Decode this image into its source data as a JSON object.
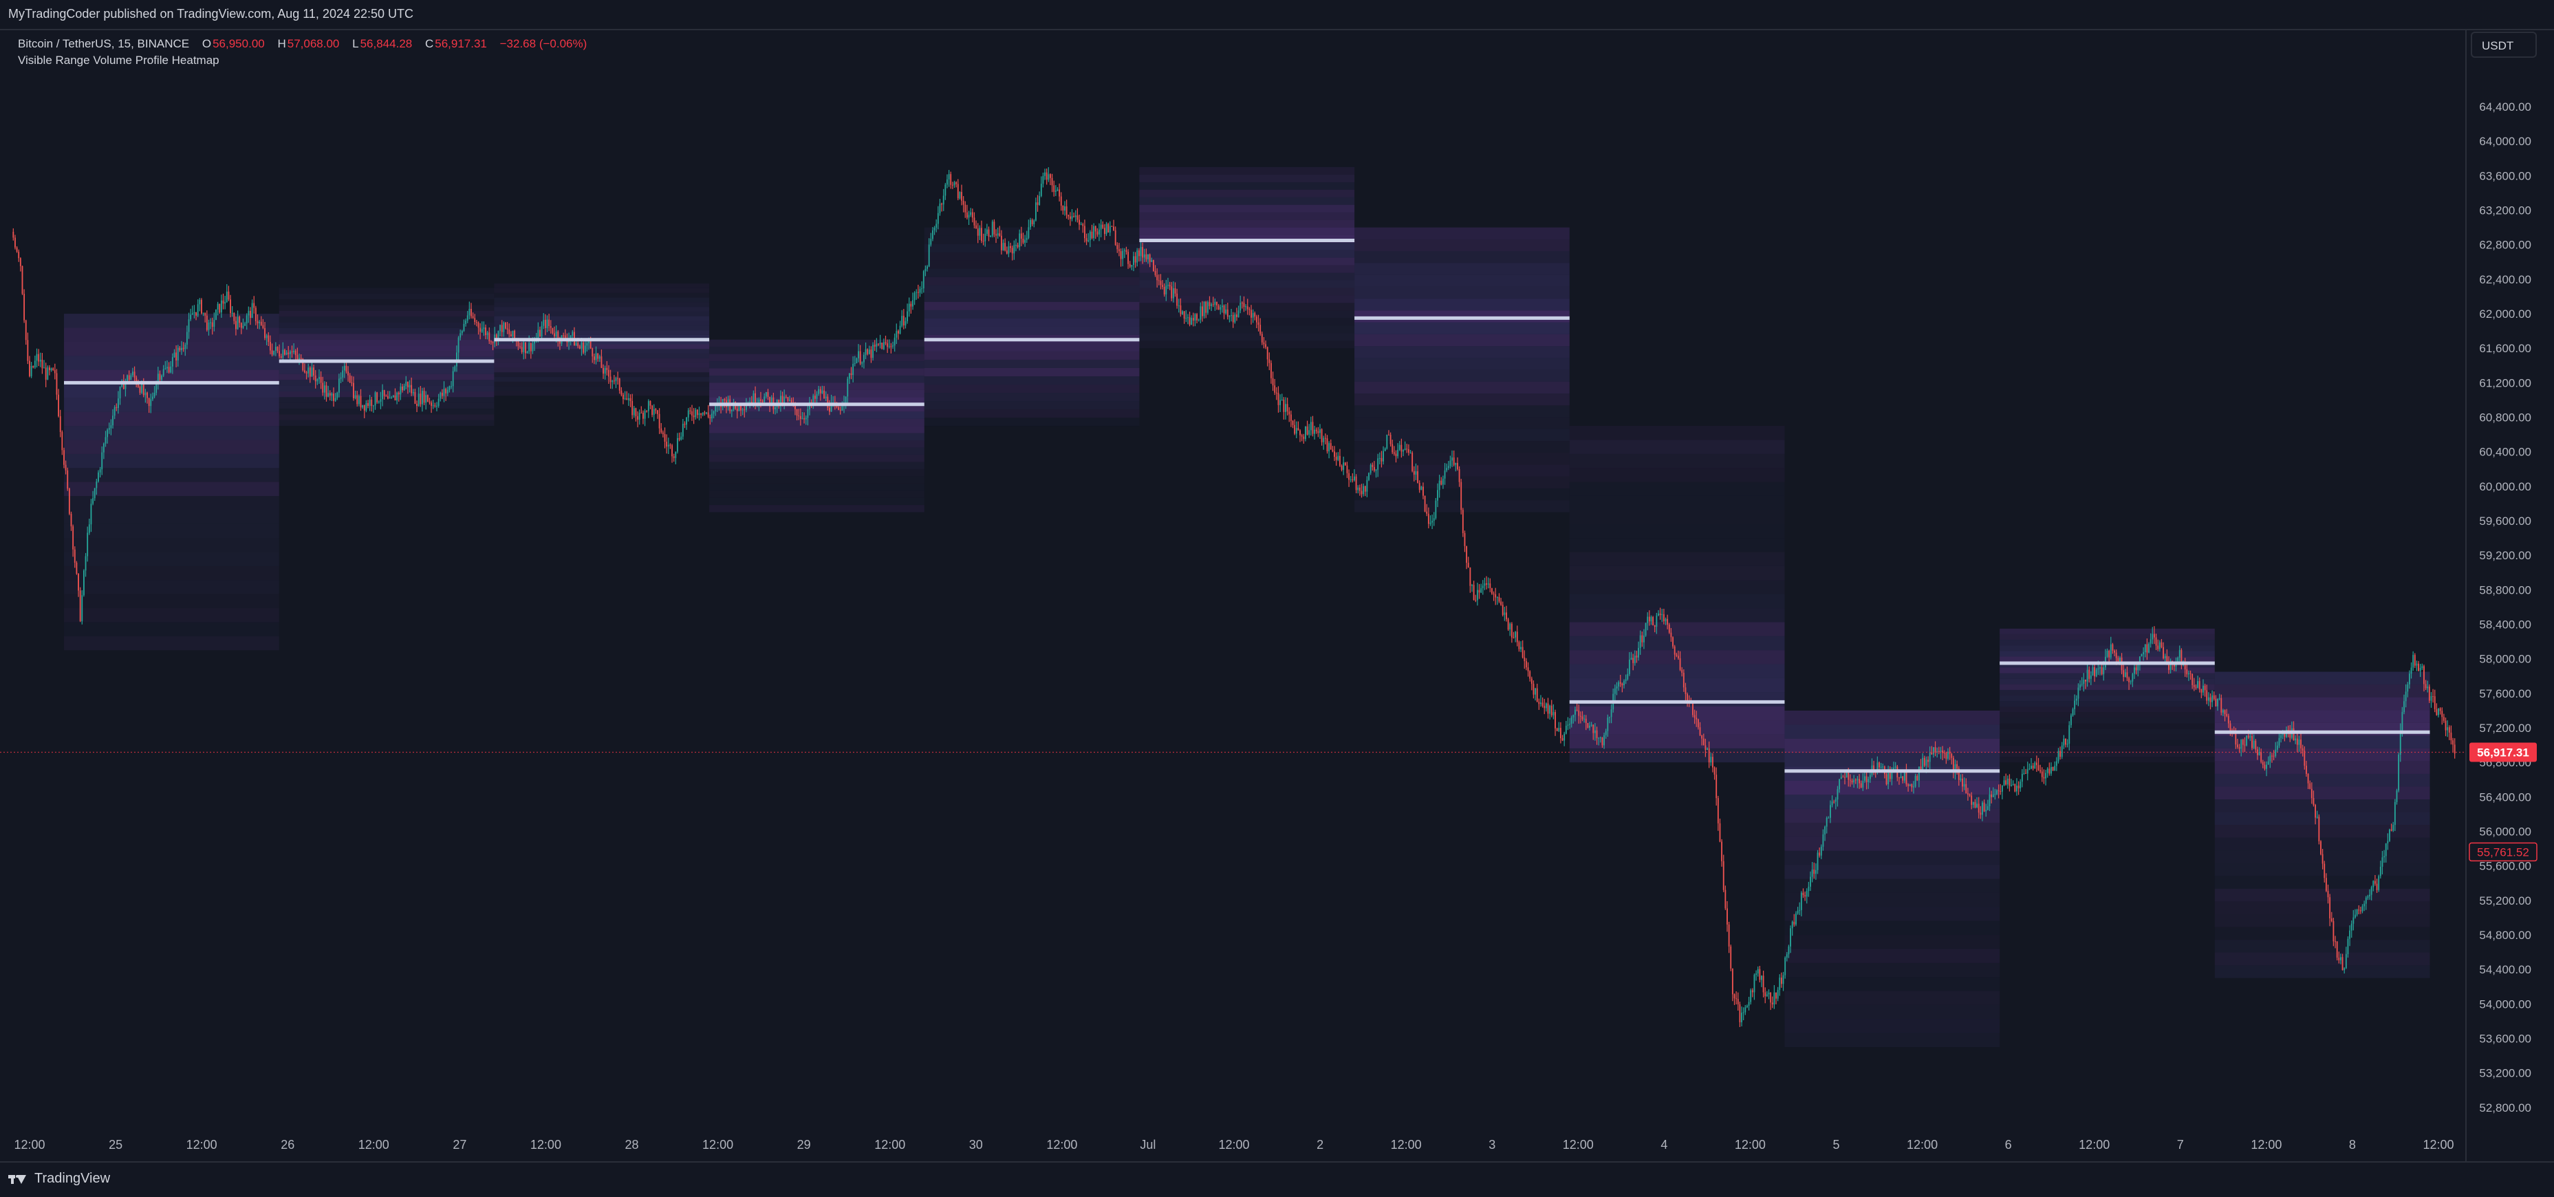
{
  "header": {
    "publisher": "MyTradingCoder published on TradingView.com, Aug 11, 2024 22:50 UTC"
  },
  "legend": {
    "symbol": "Bitcoin / TetherUS, 15, BINANCE",
    "open_label": "O",
    "open": "56,950.00",
    "high_label": "H",
    "high": "57,068.00",
    "low_label": "L",
    "low": "56,844.28",
    "close_label": "C",
    "close": "56,917.31",
    "change": "−32.68 (−0.06%)",
    "indicator": "Visible Range Volume Profile Heatmap"
  },
  "currency_button": "USDT",
  "footer": {
    "brand": "TradingView"
  },
  "colors": {
    "background": "#131722",
    "up": "#26a69a",
    "down": "#ef5350",
    "poc": "#c9cfe6",
    "price_label": "#f23645"
  },
  "chart_data": {
    "type": "candlestick",
    "symbol": "Bitcoin / TetherUS",
    "timeframe": "15",
    "ylim": [
      52400,
      64600
    ],
    "y_ticks": [
      64400,
      64000,
      63600,
      63200,
      62800,
      62400,
      62000,
      61600,
      61200,
      60800,
      60400,
      60000,
      59600,
      59200,
      58800,
      58400,
      58000,
      57600,
      57200,
      56800,
      56400,
      56000,
      55600,
      55200,
      54800,
      54400,
      54000,
      53600,
      53200,
      52800
    ],
    "y_tick_labels": [
      "64,400.00",
      "64,000.00",
      "63,600.00",
      "63,200.00",
      "62,800.00",
      "62,400.00",
      "62,000.00",
      "61,600.00",
      "61,200.00",
      "60,800.00",
      "60,400.00",
      "60,000.00",
      "59,600.00",
      "59,200.00",
      "58,800.00",
      "58,400.00",
      "58,000.00",
      "57,600.00",
      "57,200.00",
      "56,800.00",
      "56,400.00",
      "56,000.00",
      "55,600.00",
      "55,200.00",
      "54,800.00",
      "54,400.00",
      "54,000.00",
      "53,600.00",
      "53,200.00",
      "52,800.00"
    ],
    "x_ticks": [
      "12:00",
      "25",
      "12:00",
      "26",
      "12:00",
      "27",
      "12:00",
      "28",
      "12:00",
      "29",
      "12:00",
      "30",
      "12:00",
      "Jul",
      "12:00",
      "2",
      "12:00",
      "3",
      "12:00",
      "4",
      "12:00",
      "5",
      "12:00",
      "6",
      "12:00",
      "7",
      "12:00",
      "8",
      "12:00"
    ],
    "x_tick_days": [
      -0.5,
      0,
      0.5,
      1,
      1.5,
      2,
      2.5,
      3,
      3.5,
      4,
      4.5,
      5,
      5.5,
      6,
      6.5,
      7,
      7.5,
      8,
      8.5,
      9,
      9.5,
      10,
      10.5,
      11,
      11.5,
      12,
      12.5,
      13,
      13.5
    ],
    "xlim": [
      -0.6,
      13.6
    ],
    "current_price": 56917.31,
    "current_price_label": "56,917.31",
    "secondary_price": 55761.52,
    "secondary_price_label": "55,761.52",
    "price_path": [
      [
        -0.6,
        62950
      ],
      [
        -0.55,
        62650
      ],
      [
        -0.5,
        61250
      ],
      [
        -0.45,
        61500
      ],
      [
        -0.4,
        61300
      ],
      [
        -0.35,
        61300
      ],
      [
        -0.3,
        60400
      ],
      [
        -0.25,
        59500
      ],
      [
        -0.2,
        58500
      ],
      [
        -0.15,
        59600
      ],
      [
        -0.1,
        60100
      ],
      [
        -0.05,
        60600
      ],
      [
        0,
        60900
      ],
      [
        0.05,
        61200
      ],
      [
        0.1,
        61300
      ],
      [
        0.15,
        61150
      ],
      [
        0.2,
        60900
      ],
      [
        0.25,
        61300
      ],
      [
        0.3,
        61350
      ],
      [
        0.35,
        61500
      ],
      [
        0.4,
        61650
      ],
      [
        0.45,
        62000
      ],
      [
        0.5,
        62100
      ],
      [
        0.55,
        61800
      ],
      [
        0.6,
        62050
      ],
      [
        0.65,
        62200
      ],
      [
        0.7,
        61900
      ],
      [
        0.75,
        61900
      ],
      [
        0.8,
        62050
      ],
      [
        0.85,
        61850
      ],
      [
        0.9,
        61600
      ],
      [
        0.95,
        61550
      ],
      [
        1.0,
        61600
      ],
      [
        1.05,
        61500
      ],
      [
        1.1,
        61400
      ],
      [
        1.15,
        61300
      ],
      [
        1.2,
        61200
      ],
      [
        1.25,
        61000
      ],
      [
        1.3,
        61150
      ],
      [
        1.35,
        61400
      ],
      [
        1.4,
        61000
      ],
      [
        1.45,
        60950
      ],
      [
        1.5,
        61000
      ],
      [
        1.55,
        61050
      ],
      [
        1.6,
        60950
      ],
      [
        1.65,
        61100
      ],
      [
        1.7,
        61200
      ],
      [
        1.75,
        61000
      ],
      [
        1.8,
        61050
      ],
      [
        1.85,
        60950
      ],
      [
        1.9,
        61050
      ],
      [
        1.95,
        61150
      ],
      [
        2.0,
        61700
      ],
      [
        2.05,
        62000
      ],
      [
        2.1,
        61900
      ],
      [
        2.15,
        61800
      ],
      [
        2.2,
        61700
      ],
      [
        2.25,
        61850
      ],
      [
        2.3,
        61750
      ],
      [
        2.35,
        61650
      ],
      [
        2.4,
        61600
      ],
      [
        2.45,
        61700
      ],
      [
        2.5,
        61900
      ],
      [
        2.55,
        61800
      ],
      [
        2.6,
        61700
      ],
      [
        2.65,
        61750
      ],
      [
        2.7,
        61600
      ],
      [
        2.75,
        61650
      ],
      [
        2.8,
        61500
      ],
      [
        2.85,
        61300
      ],
      [
        2.9,
        61250
      ],
      [
        2.95,
        61100
      ],
      [
        3.0,
        60900
      ],
      [
        3.05,
        60800
      ],
      [
        3.1,
        60950
      ],
      [
        3.15,
        60800
      ],
      [
        3.2,
        60500
      ],
      [
        3.25,
        60400
      ],
      [
        3.3,
        60700
      ],
      [
        3.35,
        60850
      ],
      [
        3.4,
        60900
      ],
      [
        3.45,
        60800
      ],
      [
        3.5,
        60900
      ],
      [
        3.55,
        61000
      ],
      [
        3.6,
        60900
      ],
      [
        3.65,
        60950
      ],
      [
        3.7,
        61000
      ],
      [
        3.75,
        61050
      ],
      [
        3.8,
        61000
      ],
      [
        3.85,
        60950
      ],
      [
        3.9,
        61000
      ],
      [
        3.95,
        60900
      ],
      [
        4.0,
        60800
      ],
      [
        4.05,
        60950
      ],
      [
        4.1,
        61100
      ],
      [
        4.15,
        60950
      ],
      [
        4.2,
        60850
      ],
      [
        4.25,
        61100
      ],
      [
        4.3,
        61500
      ],
      [
        4.35,
        61500
      ],
      [
        4.4,
        61550
      ],
      [
        4.45,
        61650
      ],
      [
        4.5,
        61600
      ],
      [
        4.55,
        61800
      ],
      [
        4.6,
        62000
      ],
      [
        4.65,
        62200
      ],
      [
        4.7,
        62400
      ],
      [
        4.75,
        62900
      ],
      [
        4.8,
        63300
      ],
      [
        4.85,
        63600
      ],
      [
        4.9,
        63400
      ],
      [
        4.95,
        63200
      ],
      [
        5.0,
        63000
      ],
      [
        5.05,
        62900
      ],
      [
        5.1,
        63000
      ],
      [
        5.15,
        62800
      ],
      [
        5.2,
        62700
      ],
      [
        5.25,
        62850
      ],
      [
        5.3,
        62900
      ],
      [
        5.35,
        63200
      ],
      [
        5.4,
        63600
      ],
      [
        5.45,
        63500
      ],
      [
        5.5,
        63300
      ],
      [
        5.55,
        63150
      ],
      [
        5.6,
        63050
      ],
      [
        5.65,
        62900
      ],
      [
        5.7,
        62950
      ],
      [
        5.75,
        63000
      ],
      [
        5.8,
        62950
      ],
      [
        5.85,
        62700
      ],
      [
        5.9,
        62600
      ],
      [
        5.95,
        62700
      ],
      [
        6.0,
        62700
      ],
      [
        6.05,
        62500
      ],
      [
        6.1,
        62300
      ],
      [
        6.15,
        62250
      ],
      [
        6.2,
        62000
      ],
      [
        6.25,
        61900
      ],
      [
        6.3,
        62000
      ],
      [
        6.35,
        62100
      ],
      [
        6.4,
        62150
      ],
      [
        6.45,
        62000
      ],
      [
        6.5,
        61950
      ],
      [
        6.55,
        62100
      ],
      [
        6.6,
        62050
      ],
      [
        6.65,
        61850
      ],
      [
        6.7,
        61500
      ],
      [
        6.75,
        61050
      ],
      [
        6.8,
        60900
      ],
      [
        6.85,
        60700
      ],
      [
        6.9,
        60600
      ],
      [
        6.95,
        60700
      ],
      [
        7.0,
        60600
      ],
      [
        7.05,
        60450
      ],
      [
        7.1,
        60350
      ],
      [
        7.15,
        60200
      ],
      [
        7.2,
        60050
      ],
      [
        7.25,
        59900
      ],
      [
        7.3,
        60200
      ],
      [
        7.35,
        60300
      ],
      [
        7.4,
        60550
      ],
      [
        7.45,
        60350
      ],
      [
        7.5,
        60500
      ],
      [
        7.55,
        60200
      ],
      [
        7.6,
        59900
      ],
      [
        7.65,
        59500
      ],
      [
        7.7,
        60000
      ],
      [
        7.75,
        60250
      ],
      [
        7.8,
        60350
      ],
      [
        7.85,
        59200
      ],
      [
        7.9,
        58700
      ],
      [
        7.95,
        58900
      ],
      [
        8.0,
        58800
      ],
      [
        8.05,
        58600
      ],
      [
        8.1,
        58400
      ],
      [
        8.15,
        58200
      ],
      [
        8.2,
        58000
      ],
      [
        8.25,
        57600
      ],
      [
        8.3,
        57500
      ],
      [
        8.35,
        57400
      ],
      [
        8.4,
        57100
      ],
      [
        8.45,
        57200
      ],
      [
        8.5,
        57400
      ],
      [
        8.55,
        57300
      ],
      [
        8.6,
        57100
      ],
      [
        8.65,
        57000
      ],
      [
        8.7,
        57500
      ],
      [
        8.75,
        57700
      ],
      [
        8.8,
        57900
      ],
      [
        8.85,
        58100
      ],
      [
        8.9,
        58400
      ],
      [
        8.95,
        58450
      ],
      [
        9.0,
        58500
      ],
      [
        9.05,
        58200
      ],
      [
        9.1,
        57900
      ],
      [
        9.15,
        57500
      ],
      [
        9.2,
        57200
      ],
      [
        9.25,
        57000
      ],
      [
        9.3,
        56600
      ],
      [
        9.35,
        55400
      ],
      [
        9.4,
        54200
      ],
      [
        9.45,
        53800
      ],
      [
        9.5,
        54100
      ],
      [
        9.55,
        54400
      ],
      [
        9.6,
        54100
      ],
      [
        9.65,
        54050
      ],
      [
        9.7,
        54400
      ],
      [
        9.75,
        54900
      ],
      [
        9.8,
        55200
      ],
      [
        9.85,
        55400
      ],
      [
        9.9,
        55700
      ],
      [
        9.95,
        56100
      ],
      [
        10.0,
        56400
      ],
      [
        10.05,
        56700
      ],
      [
        10.1,
        56600
      ],
      [
        10.15,
        56500
      ],
      [
        10.2,
        56700
      ],
      [
        10.25,
        56800
      ],
      [
        10.3,
        56600
      ],
      [
        10.35,
        56700
      ],
      [
        10.4,
        56650
      ],
      [
        10.45,
        56550
      ],
      [
        10.5,
        56750
      ],
      [
        10.55,
        56900
      ],
      [
        10.6,
        57000
      ],
      [
        10.65,
        56900
      ],
      [
        10.7,
        56700
      ],
      [
        10.75,
        56500
      ],
      [
        10.8,
        56300
      ],
      [
        10.85,
        56250
      ],
      [
        10.9,
        56400
      ],
      [
        10.95,
        56500
      ],
      [
        11.0,
        56550
      ],
      [
        11.05,
        56500
      ],
      [
        11.1,
        56650
      ],
      [
        11.15,
        56800
      ],
      [
        11.2,
        56650
      ],
      [
        11.25,
        56700
      ],
      [
        11.3,
        56900
      ],
      [
        11.35,
        57100
      ],
      [
        11.4,
        57600
      ],
      [
        11.45,
        57800
      ],
      [
        11.5,
        57850
      ],
      [
        11.55,
        57900
      ],
      [
        11.6,
        58100
      ],
      [
        11.65,
        58000
      ],
      [
        11.7,
        57700
      ],
      [
        11.75,
        57950
      ],
      [
        11.8,
        58100
      ],
      [
        11.85,
        58250
      ],
      [
        11.9,
        58100
      ],
      [
        11.95,
        57900
      ],
      [
        12.0,
        58050
      ],
      [
        12.05,
        57850
      ],
      [
        12.1,
        57700
      ],
      [
        12.15,
        57600
      ],
      [
        12.2,
        57500
      ],
      [
        12.25,
        57450
      ],
      [
        12.3,
        57150
      ],
      [
        12.35,
        57000
      ],
      [
        12.4,
        57100
      ],
      [
        12.45,
        56950
      ],
      [
        12.5,
        56750
      ],
      [
        12.55,
        56900
      ],
      [
        12.6,
        57100
      ],
      [
        12.65,
        57150
      ],
      [
        12.7,
        57050
      ],
      [
        12.75,
        56600
      ],
      [
        12.8,
        56100
      ],
      [
        12.85,
        55400
      ],
      [
        12.9,
        54700
      ],
      [
        12.95,
        54400
      ],
      [
        13.0,
        54900
      ],
      [
        13.05,
        55100
      ],
      [
        13.1,
        55300
      ],
      [
        13.15,
        55400
      ],
      [
        13.2,
        55800
      ],
      [
        13.25,
        56200
      ],
      [
        13.3,
        57500
      ],
      [
        13.35,
        58000
      ],
      [
        13.4,
        57900
      ],
      [
        13.45,
        57600
      ],
      [
        13.5,
        57400
      ],
      [
        13.55,
        57200
      ],
      [
        13.6,
        56917
      ]
    ],
    "volume_profiles": [
      {
        "start": -0.3,
        "end": 0.95,
        "low": 58100,
        "high": 62000,
        "poc": 61200
      },
      {
        "start": 0.95,
        "end": 2.2,
        "low": 60700,
        "high": 62300,
        "poc": 61450
      },
      {
        "start": 2.2,
        "end": 3.45,
        "low": 61050,
        "high": 62350,
        "poc": 61700
      },
      {
        "start": 3.45,
        "end": 4.7,
        "low": 59700,
        "high": 61700,
        "poc": 60950
      },
      {
        "start": 4.7,
        "end": 5.95,
        "low": 60700,
        "high": 63000,
        "poc": 61700
      },
      {
        "start": 5.95,
        "end": 7.2,
        "low": 61600,
        "high": 63700,
        "poc": 62850
      },
      {
        "start": 7.2,
        "end": 8.45,
        "low": 59700,
        "high": 63000,
        "poc": 61950
      },
      {
        "start": 8.45,
        "end": 9.7,
        "low": 56800,
        "high": 60700,
        "poc": 57500
      },
      {
        "start": 9.7,
        "end": 10.95,
        "low": 53500,
        "high": 57400,
        "poc": 56700
      },
      {
        "start": 10.95,
        "end": 12.2,
        "low": 56800,
        "high": 58350,
        "poc": 57950
      },
      {
        "start": 12.2,
        "end": 13.45,
        "low": 54300,
        "high": 57850,
        "poc": 57150
      }
    ]
  }
}
